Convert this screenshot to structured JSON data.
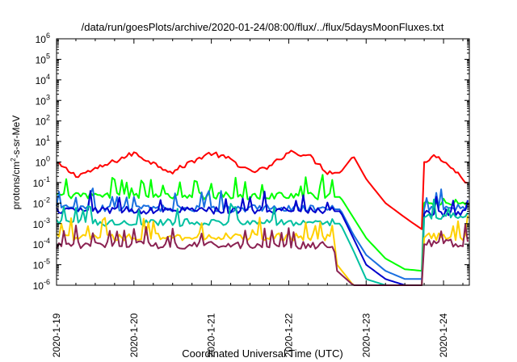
{
  "chart_data": {
    "type": "line",
    "title": "/data/run/goesPlots/archive/2020-01-24/08:00/flux/../flux/5daysMoonFluxes.txt",
    "xlabel": "Coordinated Universal Time (UTC)",
    "ylabel": {
      "base": "protons/cm",
      "sup": "2",
      "rest": "-s-sr-MeV"
    },
    "x_scale": "time",
    "xlim": [
      "2020-01-19T00:00",
      "2020-01-24T08:00"
    ],
    "y_scale": "log",
    "ylim": [
      1e-06,
      1000000.0
    ],
    "x_ticks": [
      "2020-1-19",
      "2020-1-20",
      "2020-1-21",
      "2020-1-22",
      "2020-1-23",
      "2020-1-24"
    ],
    "y_ticks": [
      {
        "value": 1e-06,
        "base": "10",
        "exp": "-6"
      },
      {
        "value": 1e-05,
        "base": "10",
        "exp": "-5"
      },
      {
        "value": 0.0001,
        "base": "10",
        "exp": "-4"
      },
      {
        "value": 0.001,
        "base": "10",
        "exp": "-3"
      },
      {
        "value": 0.01,
        "base": "10",
        "exp": "-2"
      },
      {
        "value": 0.1,
        "base": "10",
        "exp": "-1"
      },
      {
        "value": 1.0,
        "base": "10",
        "exp": "0"
      },
      {
        "value": 10.0,
        "base": "10",
        "exp": "1"
      },
      {
        "value": 100.0,
        "base": "10",
        "exp": "2"
      },
      {
        "value": 1000.0,
        "base": "10",
        "exp": "3"
      },
      {
        "value": 10000.0,
        "base": "10",
        "exp": "4"
      },
      {
        "value": 100000.0,
        "base": "10",
        "exp": "5"
      },
      {
        "value": 1000000.0,
        "base": "10",
        "exp": "6"
      }
    ],
    "grid": false,
    "legend": "none",
    "series": [
      {
        "color": "#ff0000",
        "x": [
          "2020-01-19T00:00",
          "2020-01-19T06:00",
          "2020-01-19T12:00",
          "2020-01-19T18:00",
          "2020-01-20T00:00",
          "2020-01-20T06:00",
          "2020-01-20T12:00",
          "2020-01-20T18:00",
          "2020-01-21T00:00",
          "2020-01-21T06:00",
          "2020-01-21T12:00",
          "2020-01-21T18:00",
          "2020-01-22T00:00",
          "2020-01-22T06:00",
          "2020-01-22T12:00",
          "2020-01-22T16:00",
          "2020-01-22T20:00",
          "2020-01-23T00:00",
          "2020-01-23T06:00",
          "2020-01-23T12:00",
          "2020-01-23T17:30",
          "2020-01-23T18:00",
          "2020-01-23T22:00",
          "2020-01-24T04:00",
          "2020-01-24T08:00"
        ],
        "y": [
          0.8,
          0.2,
          0.4,
          1.0,
          2.5,
          0.8,
          0.3,
          1.0,
          2.5,
          1.2,
          0.3,
          0.5,
          3.0,
          2.0,
          0.3,
          0.3,
          2.0,
          0.15,
          0.01,
          0.002,
          0.0005,
          1.0,
          2.0,
          0.3,
          0.07
        ]
      },
      {
        "color": "#00ff00",
        "x": [
          "2020-01-19T00:00",
          "2020-01-20T00:00",
          "2020-01-21T00:00",
          "2020-01-22T00:00",
          "2020-01-22T16:00",
          "2020-01-22T20:00",
          "2020-01-23T00:00",
          "2020-01-23T06:00",
          "2020-01-23T12:00",
          "2020-01-23T17:30",
          "2020-01-23T18:00",
          "2020-01-24T08:00"
        ],
        "y": [
          0.02,
          0.02,
          0.02,
          0.02,
          0.02,
          0.002,
          0.0002,
          2e-05,
          6e-06,
          5e-06,
          0.01,
          0.01
        ]
      },
      {
        "color": "#1a6fe0",
        "x": [
          "2020-01-19T00:00",
          "2020-01-20T00:00",
          "2020-01-21T00:00",
          "2020-01-22T00:00",
          "2020-01-22T16:00",
          "2020-01-22T20:00",
          "2020-01-23T00:00",
          "2020-01-23T06:00",
          "2020-01-23T12:00",
          "2020-01-23T17:30",
          "2020-01-23T18:00",
          "2020-01-24T08:00"
        ],
        "y": [
          0.005,
          0.005,
          0.005,
          0.005,
          0.005,
          0.0003,
          3e-05,
          5e-06,
          2e-06,
          2e-06,
          0.005,
          0.005
        ]
      },
      {
        "color": "#0000cc",
        "x": [
          "2020-01-19T00:00",
          "2020-01-20T00:00",
          "2020-01-21T00:00",
          "2020-01-22T00:00",
          "2020-01-22T16:00",
          "2020-01-22T20:00",
          "2020-01-23T00:00",
          "2020-01-23T06:00",
          "2020-01-23T12:00",
          "2020-01-23T17:30",
          "2020-01-23T18:00",
          "2020-01-24T08:00"
        ],
        "y": [
          0.004,
          0.004,
          0.004,
          0.004,
          0.004,
          0.0002,
          1e-05,
          2e-06,
          1e-06,
          1e-06,
          0.003,
          0.003
        ]
      },
      {
        "color": "#00c0a0",
        "x": [
          "2020-01-19T00:00",
          "2020-01-20T00:00",
          "2020-01-21T00:00",
          "2020-01-22T00:00",
          "2020-01-22T16:00",
          "2020-01-22T20:00",
          "2020-01-23T00:00",
          "2020-01-23T06:00",
          "2020-01-23T12:00",
          "2020-01-23T17:30",
          "2020-01-23T18:00",
          "2020-01-24T08:00"
        ],
        "y": [
          0.001,
          0.001,
          0.001,
          0.001,
          0.001,
          5e-05,
          2e-06,
          1e-06,
          1e-06,
          1e-06,
          0.002,
          0.002
        ]
      },
      {
        "color": "#ffd000",
        "x": [
          "2020-01-19T00:00",
          "2020-01-20T00:00",
          "2020-01-21T00:00",
          "2020-01-22T00:00",
          "2020-01-22T14:00",
          "2020-01-22T15:00",
          "2020-01-22T20:00",
          "2020-01-23T12:00",
          "2020-01-23T17:30",
          "2020-01-23T18:00",
          "2020-01-24T08:00"
        ],
        "y": [
          0.0002,
          0.0002,
          0.0002,
          0.0002,
          0.0002,
          1e-05,
          1e-06,
          1e-06,
          1e-06,
          0.0002,
          0.0002
        ]
      },
      {
        "color": "#8b2252",
        "x": [
          "2020-01-19T00:00",
          "2020-01-20T00:00",
          "2020-01-21T00:00",
          "2020-01-22T00:00",
          "2020-01-22T14:00",
          "2020-01-22T15:00",
          "2020-01-22T20:00",
          "2020-01-23T12:00",
          "2020-01-23T17:30",
          "2020-01-23T18:00",
          "2020-01-24T08:00"
        ],
        "y": [
          8e-05,
          8e-05,
          8e-05,
          8e-05,
          8e-05,
          5e-06,
          1e-06,
          1e-06,
          1e-06,
          0.0001,
          0.0001
        ]
      }
    ]
  }
}
